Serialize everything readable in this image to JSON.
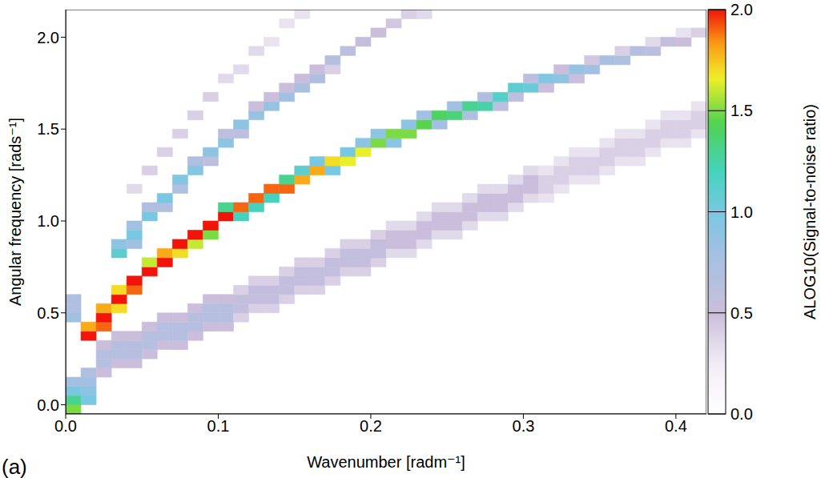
{
  "chart_data": {
    "type": "heatmap",
    "x_label": "Wavenumber [radm⁻¹]",
    "y_label": "Angular frequency [rads⁻¹]",
    "panel": "(a)",
    "xlim": [
      0,
      0.42
    ],
    "xticks": [
      {
        "value": 0,
        "label": "0.0"
      },
      0.1,
      0.2,
      0.3,
      0.4
    ],
    "ylim": [
      -0.05,
      2.15
    ],
    "yticks": [
      {
        "value": 0,
        "label": "0.0"
      },
      0.5,
      {
        "value": 1,
        "label": "1.0"
      },
      1.5,
      {
        "value": 2,
        "label": "2.0"
      }
    ],
    "x_bins": [
      0,
      0.01,
      0.02,
      0.03,
      0.04,
      0.05,
      0.06,
      0.07,
      0.08,
      0.09,
      0.1,
      0.11,
      0.12,
      0.13,
      0.14,
      0.15,
      0.16,
      0.17,
      0.18,
      0.19,
      0.2,
      0.21,
      0.22,
      0.23,
      0.24,
      0.25,
      0.26,
      0.27,
      0.28,
      0.29,
      0.3,
      0.31,
      0.32,
      0.33,
      0.34,
      0.35,
      0.36,
      0.37,
      0.38,
      0.39,
      0.4,
      0.41,
      0.42
    ],
    "y_bins": [
      -0.05,
      0,
      0.05,
      0.1,
      0.15,
      0.2,
      0.25,
      0.3,
      0.35,
      0.4,
      0.45,
      0.5,
      0.55,
      0.6,
      0.65,
      0.7,
      0.75,
      0.8,
      0.85,
      0.9,
      0.95,
      1.0,
      1.05,
      1.1,
      1.15,
      1.2,
      1.25,
      1.3,
      1.35,
      1.4,
      1.45,
      1.5,
      1.55,
      1.6,
      1.65,
      1.7,
      1.75,
      1.8,
      1.85,
      1.9,
      1.95,
      2.0,
      2.05,
      2.1,
      2.15
    ],
    "cells": [
      [
        0,
        -0.05,
        1.5
      ],
      [
        0,
        0,
        1.3
      ],
      [
        0,
        0.05,
        1.0
      ],
      [
        0,
        0.1,
        0.8
      ],
      [
        0,
        0.45,
        0.8
      ],
      [
        0,
        0.5,
        0.7
      ],
      [
        0,
        0.55,
        0.7
      ],
      [
        0.01,
        0,
        1.0
      ],
      [
        0.01,
        0.05,
        0.9
      ],
      [
        0.01,
        0.1,
        0.8
      ],
      [
        0.01,
        0.15,
        0.7
      ],
      [
        0.02,
        0.15,
        0.5
      ],
      [
        0.02,
        0.2,
        0.65
      ],
      [
        0.02,
        0.25,
        0.65
      ],
      [
        0.02,
        0.3,
        0.5
      ],
      [
        0.03,
        0.2,
        0.5
      ],
      [
        0.03,
        0.25,
        0.65
      ],
      [
        0.03,
        0.3,
        0.65
      ],
      [
        0.03,
        0.35,
        0.5
      ],
      [
        0.04,
        0.2,
        0.5
      ],
      [
        0.04,
        0.25,
        0.65
      ],
      [
        0.04,
        0.3,
        0.65
      ],
      [
        0.04,
        0.35,
        0.5
      ],
      [
        0.05,
        0.25,
        0.5
      ],
      [
        0.05,
        0.3,
        0.65
      ],
      [
        0.05,
        0.35,
        0.65
      ],
      [
        0.05,
        0.4,
        0.5
      ],
      [
        0.06,
        0.3,
        0.5
      ],
      [
        0.06,
        0.35,
        0.65
      ],
      [
        0.06,
        0.4,
        0.65
      ],
      [
        0.06,
        0.45,
        0.5
      ],
      [
        0.07,
        0.3,
        0.5
      ],
      [
        0.07,
        0.35,
        0.65
      ],
      [
        0.07,
        0.4,
        0.65
      ],
      [
        0.07,
        0.45,
        0.5
      ],
      [
        0.08,
        0.35,
        0.5
      ],
      [
        0.08,
        0.4,
        0.65
      ],
      [
        0.08,
        0.45,
        0.65
      ],
      [
        0.08,
        0.5,
        0.5
      ],
      [
        0.09,
        0.4,
        0.5
      ],
      [
        0.09,
        0.45,
        0.65
      ],
      [
        0.09,
        0.5,
        0.65
      ],
      [
        0.09,
        0.55,
        0.5
      ],
      [
        0.1,
        0.4,
        0.5
      ],
      [
        0.1,
        0.45,
        0.65
      ],
      [
        0.1,
        0.5,
        0.65
      ],
      [
        0.1,
        0.55,
        0.5
      ],
      [
        0.11,
        0.45,
        0.4
      ],
      [
        0.11,
        0.5,
        0.55
      ],
      [
        0.11,
        0.55,
        0.55
      ],
      [
        0.11,
        0.6,
        0.4
      ],
      [
        0.12,
        0.5,
        0.4
      ],
      [
        0.12,
        0.55,
        0.55
      ],
      [
        0.12,
        0.6,
        0.55
      ],
      [
        0.12,
        0.65,
        0.4
      ],
      [
        0.13,
        0.5,
        0.4
      ],
      [
        0.13,
        0.55,
        0.55
      ],
      [
        0.13,
        0.6,
        0.55
      ],
      [
        0.13,
        0.65,
        0.4
      ],
      [
        0.14,
        0.55,
        0.4
      ],
      [
        0.14,
        0.6,
        0.55
      ],
      [
        0.14,
        0.65,
        0.55
      ],
      [
        0.14,
        0.7,
        0.4
      ],
      [
        0.15,
        0.6,
        0.4
      ],
      [
        0.15,
        0.65,
        0.55
      ],
      [
        0.15,
        0.7,
        0.55
      ],
      [
        0.15,
        0.75,
        0.4
      ],
      [
        0.16,
        0.6,
        0.4
      ],
      [
        0.16,
        0.65,
        0.55
      ],
      [
        0.16,
        0.7,
        0.55
      ],
      [
        0.16,
        0.75,
        0.4
      ],
      [
        0.17,
        0.65,
        0.4
      ],
      [
        0.17,
        0.7,
        0.55
      ],
      [
        0.17,
        0.75,
        0.55
      ],
      [
        0.17,
        0.8,
        0.4
      ],
      [
        0.18,
        0.7,
        0.4
      ],
      [
        0.18,
        0.75,
        0.55
      ],
      [
        0.18,
        0.8,
        0.55
      ],
      [
        0.18,
        0.85,
        0.4
      ],
      [
        0.19,
        0.7,
        0.4
      ],
      [
        0.19,
        0.75,
        0.55
      ],
      [
        0.19,
        0.8,
        0.55
      ],
      [
        0.19,
        0.85,
        0.4
      ],
      [
        0.2,
        0.75,
        0.4
      ],
      [
        0.2,
        0.8,
        0.55
      ],
      [
        0.2,
        0.85,
        0.55
      ],
      [
        0.2,
        0.9,
        0.4
      ],
      [
        0.21,
        0.8,
        0.35
      ],
      [
        0.21,
        0.85,
        0.5
      ],
      [
        0.21,
        0.9,
        0.5
      ],
      [
        0.21,
        0.95,
        0.35
      ],
      [
        0.22,
        0.8,
        0.35
      ],
      [
        0.22,
        0.85,
        0.5
      ],
      [
        0.22,
        0.9,
        0.5
      ],
      [
        0.22,
        0.95,
        0.35
      ],
      [
        0.23,
        0.85,
        0.35
      ],
      [
        0.23,
        0.9,
        0.5
      ],
      [
        0.23,
        0.95,
        0.5
      ],
      [
        0.23,
        1.0,
        0.35
      ],
      [
        0.24,
        0.9,
        0.35
      ],
      [
        0.24,
        0.95,
        0.5
      ],
      [
        0.24,
        1.0,
        0.5
      ],
      [
        0.24,
        1.05,
        0.35
      ],
      [
        0.25,
        0.9,
        0.35
      ],
      [
        0.25,
        0.95,
        0.5
      ],
      [
        0.25,
        1.0,
        0.5
      ],
      [
        0.25,
        1.05,
        0.35
      ],
      [
        0.26,
        0.95,
        0.35
      ],
      [
        0.26,
        1.0,
        0.5
      ],
      [
        0.26,
        1.05,
        0.5
      ],
      [
        0.26,
        1.1,
        0.35
      ],
      [
        0.27,
        1.0,
        0.35
      ],
      [
        0.27,
        1.05,
        0.5
      ],
      [
        0.27,
        1.1,
        0.5
      ],
      [
        0.27,
        1.15,
        0.35
      ],
      [
        0.28,
        1.0,
        0.35
      ],
      [
        0.28,
        1.05,
        0.5
      ],
      [
        0.28,
        1.1,
        0.5
      ],
      [
        0.28,
        1.15,
        0.35
      ],
      [
        0.29,
        1.05,
        0.35
      ],
      [
        0.29,
        1.1,
        0.5
      ],
      [
        0.29,
        1.15,
        0.5
      ],
      [
        0.29,
        1.2,
        0.35
      ],
      [
        0.3,
        1.1,
        0.35
      ],
      [
        0.3,
        1.15,
        0.5
      ],
      [
        0.3,
        1.2,
        0.5
      ],
      [
        0.3,
        1.25,
        0.35
      ],
      [
        0.31,
        1.1,
        0.3
      ],
      [
        0.31,
        1.15,
        0.4
      ],
      [
        0.31,
        1.2,
        0.4
      ],
      [
        0.31,
        1.25,
        0.3
      ],
      [
        0.32,
        1.15,
        0.3
      ],
      [
        0.32,
        1.2,
        0.4
      ],
      [
        0.32,
        1.25,
        0.4
      ],
      [
        0.32,
        1.3,
        0.3
      ],
      [
        0.33,
        1.2,
        0.3
      ],
      [
        0.33,
        1.25,
        0.4
      ],
      [
        0.33,
        1.3,
        0.4
      ],
      [
        0.33,
        1.35,
        0.3
      ],
      [
        0.34,
        1.2,
        0.3
      ],
      [
        0.34,
        1.25,
        0.4
      ],
      [
        0.34,
        1.3,
        0.4
      ],
      [
        0.34,
        1.35,
        0.3
      ],
      [
        0.35,
        1.25,
        0.3
      ],
      [
        0.35,
        1.3,
        0.4
      ],
      [
        0.35,
        1.35,
        0.4
      ],
      [
        0.35,
        1.4,
        0.3
      ],
      [
        0.36,
        1.3,
        0.3
      ],
      [
        0.36,
        1.35,
        0.4
      ],
      [
        0.36,
        1.4,
        0.4
      ],
      [
        0.36,
        1.45,
        0.3
      ],
      [
        0.37,
        1.3,
        0.3
      ],
      [
        0.37,
        1.35,
        0.4
      ],
      [
        0.37,
        1.4,
        0.4
      ],
      [
        0.37,
        1.45,
        0.3
      ],
      [
        0.38,
        1.35,
        0.3
      ],
      [
        0.38,
        1.4,
        0.4
      ],
      [
        0.38,
        1.45,
        0.4
      ],
      [
        0.38,
        1.5,
        0.3
      ],
      [
        0.39,
        1.4,
        0.3
      ],
      [
        0.39,
        1.45,
        0.4
      ],
      [
        0.39,
        1.5,
        0.4
      ],
      [
        0.39,
        1.55,
        0.3
      ],
      [
        0.4,
        1.4,
        0.3
      ],
      [
        0.4,
        1.45,
        0.4
      ],
      [
        0.4,
        1.5,
        0.4
      ],
      [
        0.4,
        1.55,
        0.3
      ],
      [
        0.41,
        1.45,
        0.3
      ],
      [
        0.41,
        1.5,
        0.4
      ],
      [
        0.41,
        1.55,
        0.4
      ],
      [
        0.41,
        1.6,
        0.3
      ],
      [
        0.04,
        1.15,
        0.35
      ],
      [
        0.05,
        1.25,
        0.4
      ],
      [
        0.06,
        1.35,
        0.4
      ],
      [
        0.07,
        1.45,
        0.4
      ],
      [
        0.08,
        1.55,
        0.4
      ],
      [
        0.09,
        1.65,
        0.4
      ],
      [
        0.1,
        1.75,
        0.35
      ],
      [
        0.11,
        1.8,
        0.35
      ],
      [
        0.12,
        1.9,
        0.35
      ],
      [
        0.13,
        1.95,
        0.3
      ],
      [
        0.14,
        2.05,
        0.3
      ],
      [
        0.15,
        2.1,
        0.3
      ],
      [
        0.03,
        0.8,
        1.1
      ],
      [
        0.03,
        0.85,
        0.9
      ],
      [
        0.04,
        0.85,
        0.8
      ],
      [
        0.04,
        0.9,
        1.0
      ],
      [
        0.04,
        0.95,
        0.8
      ],
      [
        0.05,
        1.0,
        1.0
      ],
      [
        0.05,
        1.05,
        0.7
      ],
      [
        0.06,
        1.05,
        0.7
      ],
      [
        0.06,
        1.1,
        1.0
      ],
      [
        0.07,
        1.15,
        0.7
      ],
      [
        0.07,
        1.2,
        0.95
      ],
      [
        0.08,
        1.25,
        0.95
      ],
      [
        0.08,
        1.3,
        0.7
      ],
      [
        0.09,
        1.3,
        0.6
      ],
      [
        0.09,
        1.35,
        0.9
      ],
      [
        0.1,
        1.4,
        0.9
      ],
      [
        0.1,
        1.45,
        0.6
      ],
      [
        0.11,
        1.45,
        0.6
      ],
      [
        0.11,
        1.5,
        0.9
      ],
      [
        0.12,
        1.55,
        0.85
      ],
      [
        0.12,
        1.6,
        0.5
      ],
      [
        0.13,
        1.6,
        0.85
      ],
      [
        0.13,
        1.65,
        0.5
      ],
      [
        0.14,
        1.65,
        0.8
      ],
      [
        0.14,
        1.7,
        0.5
      ],
      [
        0.15,
        1.7,
        0.75
      ],
      [
        0.15,
        1.75,
        0.5
      ],
      [
        0.16,
        1.75,
        0.7
      ],
      [
        0.16,
        1.8,
        0.5
      ],
      [
        0.17,
        1.8,
        0.4
      ],
      [
        0.17,
        1.85,
        0.65
      ],
      [
        0.18,
        1.9,
        0.6
      ],
      [
        0.19,
        1.95,
        0.55
      ],
      [
        0.2,
        2.0,
        0.5
      ],
      [
        0.21,
        2.05,
        0.45
      ],
      [
        0.22,
        2.1,
        0.4
      ],
      [
        0.23,
        2.1,
        0.35
      ],
      [
        0.01,
        0.35,
        2.0
      ],
      [
        0.01,
        0.4,
        1.8
      ],
      [
        0.02,
        0.4,
        1.9
      ],
      [
        0.02,
        0.45,
        2.0
      ],
      [
        0.02,
        0.5,
        1.8
      ],
      [
        0.03,
        0.5,
        1.7
      ],
      [
        0.03,
        0.55,
        2.0
      ],
      [
        0.03,
        0.6,
        1.7
      ],
      [
        0.04,
        0.6,
        1.9
      ],
      [
        0.04,
        0.65,
        2.0
      ],
      [
        0.05,
        0.7,
        2.0
      ],
      [
        0.05,
        0.75,
        1.6
      ],
      [
        0.06,
        0.75,
        2.0
      ],
      [
        0.06,
        0.8,
        1.8
      ],
      [
        0.07,
        0.8,
        1.7
      ],
      [
        0.07,
        0.85,
        2.0
      ],
      [
        0.08,
        0.85,
        1.6
      ],
      [
        0.08,
        0.9,
        2.0
      ],
      [
        0.09,
        0.9,
        1.5
      ],
      [
        0.09,
        0.95,
        2.0
      ],
      [
        0.1,
        1.0,
        2.0
      ],
      [
        0.1,
        1.05,
        1.3
      ],
      [
        0.11,
        1.0,
        1.2
      ],
      [
        0.11,
        1.05,
        1.9
      ],
      [
        0.12,
        1.05,
        1.2
      ],
      [
        0.12,
        1.1,
        1.9
      ],
      [
        0.13,
        1.1,
        1.2
      ],
      [
        0.13,
        1.15,
        1.9
      ],
      [
        0.14,
        1.15,
        1.9
      ],
      [
        0.14,
        1.2,
        1.3
      ],
      [
        0.15,
        1.2,
        1.8
      ],
      [
        0.15,
        1.25,
        1.1
      ],
      [
        0.16,
        1.25,
        1.8
      ],
      [
        0.16,
        1.3,
        1.0
      ],
      [
        0.17,
        1.25,
        1.0
      ],
      [
        0.17,
        1.3,
        1.7
      ],
      [
        0.18,
        1.3,
        1.65
      ],
      [
        0.18,
        1.35,
        1.0
      ],
      [
        0.19,
        1.35,
        1.65
      ],
      [
        0.19,
        1.4,
        0.9
      ],
      [
        0.2,
        1.4,
        1.5
      ],
      [
        0.2,
        1.45,
        0.9
      ],
      [
        0.21,
        1.4,
        0.9
      ],
      [
        0.21,
        1.45,
        1.5
      ],
      [
        0.22,
        1.45,
        1.5
      ],
      [
        0.22,
        1.5,
        0.9
      ],
      [
        0.23,
        1.5,
        1.45
      ],
      [
        0.23,
        1.55,
        0.8
      ],
      [
        0.24,
        1.5,
        0.8
      ],
      [
        0.24,
        1.55,
        1.4
      ],
      [
        0.25,
        1.55,
        1.35
      ],
      [
        0.25,
        1.6,
        0.8
      ],
      [
        0.26,
        1.55,
        0.7
      ],
      [
        0.26,
        1.6,
        1.3
      ],
      [
        0.27,
        1.6,
        1.25
      ],
      [
        0.27,
        1.65,
        0.7
      ],
      [
        0.28,
        1.6,
        0.6
      ],
      [
        0.28,
        1.65,
        1.15
      ],
      [
        0.29,
        1.65,
        0.6
      ],
      [
        0.29,
        1.7,
        1.1
      ],
      [
        0.3,
        1.7,
        1.05
      ],
      [
        0.3,
        1.75,
        0.6
      ],
      [
        0.31,
        1.7,
        0.5
      ],
      [
        0.31,
        1.75,
        0.95
      ],
      [
        0.32,
        1.75,
        0.9
      ],
      [
        0.32,
        1.8,
        0.5
      ],
      [
        0.33,
        1.75,
        0.5
      ],
      [
        0.33,
        1.8,
        0.85
      ],
      [
        0.34,
        1.8,
        0.8
      ],
      [
        0.34,
        1.85,
        0.45
      ],
      [
        0.35,
        1.85,
        0.75
      ],
      [
        0.36,
        1.85,
        0.7
      ],
      [
        0.36,
        1.9,
        0.4
      ],
      [
        0.37,
        1.9,
        0.65
      ],
      [
        0.38,
        1.9,
        0.6
      ],
      [
        0.38,
        1.95,
        0.35
      ],
      [
        0.39,
        1.95,
        0.55
      ],
      [
        0.4,
        1.95,
        0.5
      ],
      [
        0.4,
        2.0,
        0.3
      ],
      [
        0.41,
        2.0,
        0.4
      ]
    ],
    "colorbar": {
      "label": "ALOG10(Signal-to-noise ratio)",
      "range": [
        0,
        2
      ],
      "ticks": [
        {
          "value": 0,
          "label": "0.0"
        },
        0.5,
        {
          "value": 1,
          "label": "1.0"
        },
        1.5,
        {
          "value": 2,
          "label": "2.0"
        }
      ]
    }
  }
}
